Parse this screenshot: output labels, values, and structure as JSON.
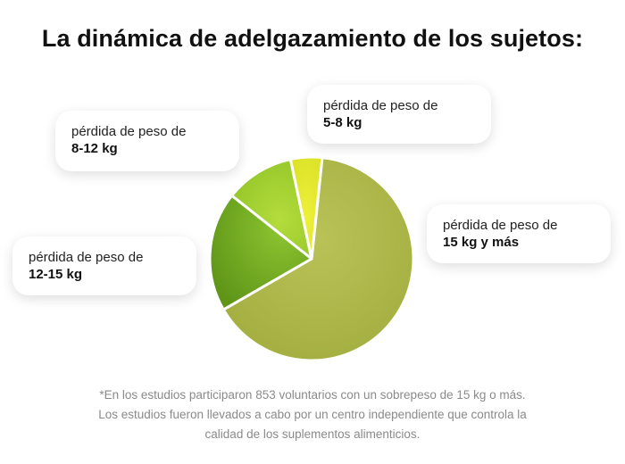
{
  "title": "La dinámica de adelgazamiento de los sujetos:",
  "chart_data": {
    "type": "pie",
    "categories": [
      "15 kg y más",
      "12-15 kg",
      "8-12 kg",
      "5-8 kg"
    ],
    "values": [
      65,
      19,
      11,
      5
    ],
    "label_prefix": "pérdida de peso de",
    "colors": [
      "#a9b444",
      "#6fa421",
      "#9ccd2c",
      "#e0e62a"
    ],
    "legend": "callout cards around the pie"
  },
  "labels": {
    "plus15": {
      "prefix": "pérdida de peso de",
      "range": "15 kg y más"
    },
    "r12_15": {
      "prefix": "pérdida de peso de",
      "range": "12-15 kg"
    },
    "r8_12": {
      "prefix": "pérdida de peso de",
      "range": "8-12 kg"
    },
    "r5_8": {
      "prefix": "pérdida de peso de",
      "range": "5-8 kg"
    }
  },
  "footnote": "*En los estudios participaron 853 voluntarios con un sobrepeso de 15 kg o más. Los estudios fueron llevados a cabo por un centro independiente que controla la calidad de los suplementos alimenticios."
}
